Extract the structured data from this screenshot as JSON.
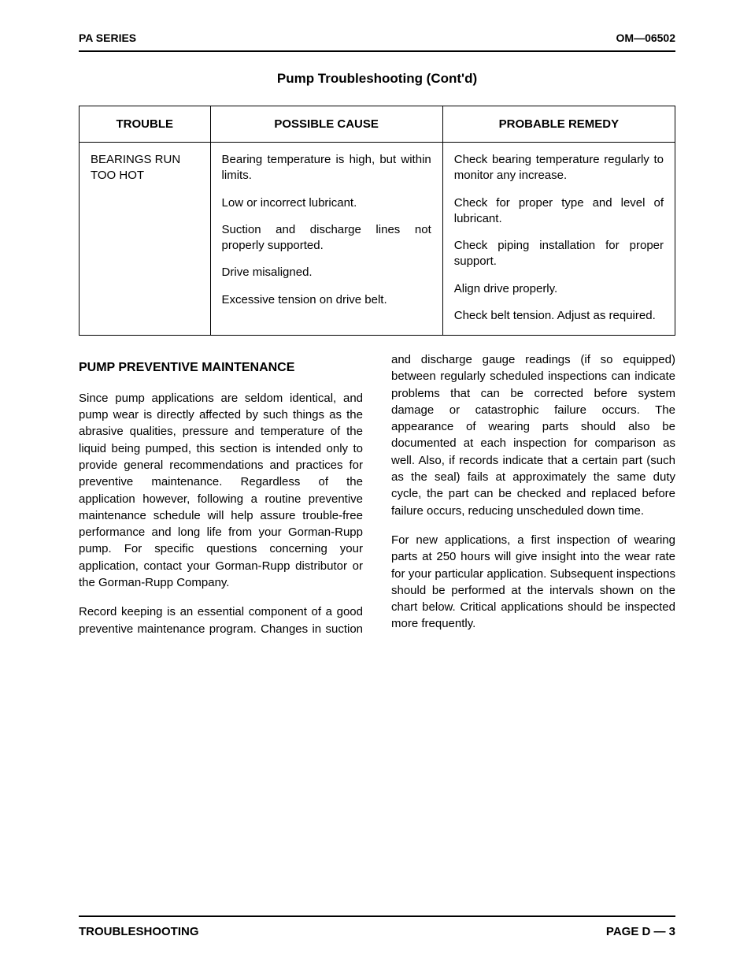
{
  "header": {
    "left": "PA SERIES",
    "right": "OM—06502"
  },
  "title": "Pump Troubleshooting (Cont'd)",
  "table": {
    "headers": [
      "TROUBLE",
      "POSSIBLE CAUSE",
      "PROBABLE REMEDY"
    ],
    "trouble_label": "BEARINGS RUN TOO HOT",
    "rows": [
      {
        "cause": "Bearing temperature is high, but within limits.",
        "remedy": "Check bearing temperature regularly to monitor any increase."
      },
      {
        "cause": "Low or incorrect lubricant.",
        "remedy": "Check for proper type and level of lubricant."
      },
      {
        "cause": "Suction and discharge lines not properly supported.",
        "remedy": "Check piping installation for proper support."
      },
      {
        "cause": "Drive misaligned.",
        "remedy": "Align drive properly."
      },
      {
        "cause": "Excessive tension on drive belt.",
        "remedy": "Check belt tension. Adjust as required."
      }
    ]
  },
  "section_heading": "PUMP PREVENTIVE MAINTENANCE",
  "paragraphs": [
    "Since pump applications are seldom identical, and pump wear is directly affected by such things as the abrasive qualities, pressure and temperature of the liquid being pumped, this section is intended only to provide general recommendations and practices for preventive maintenance. Regardless of the application however, following a routine preventive maintenance schedule will help assure trouble-free performance and long life from your Gorman-Rupp pump. For specific questions concerning your application, contact your Gorman-Rupp distributor or the Gorman-Rupp Company.",
    "Record keeping is an essential component of a good preventive maintenance program. Changes in suction and discharge gauge readings (if so equipped) between regularly scheduled inspections can indicate problems that can be corrected before system damage or catastrophic failure occurs. The appearance of wearing parts should also be documented at each inspection for comparison as well. Also, if records indicate that a certain part (such as the seal) fails at approximately the same duty cycle, the part can be checked and replaced before failure occurs, reducing unscheduled down time.",
    "For new applications, a first inspection of wearing parts at 250 hours will give insight into the wear rate for your particular application. Subsequent inspections should be performed at the intervals shown on the chart below. Critical applications should be inspected more frequently."
  ],
  "footer": {
    "left": "TROUBLESHOOTING",
    "right": "PAGE D — 3"
  }
}
